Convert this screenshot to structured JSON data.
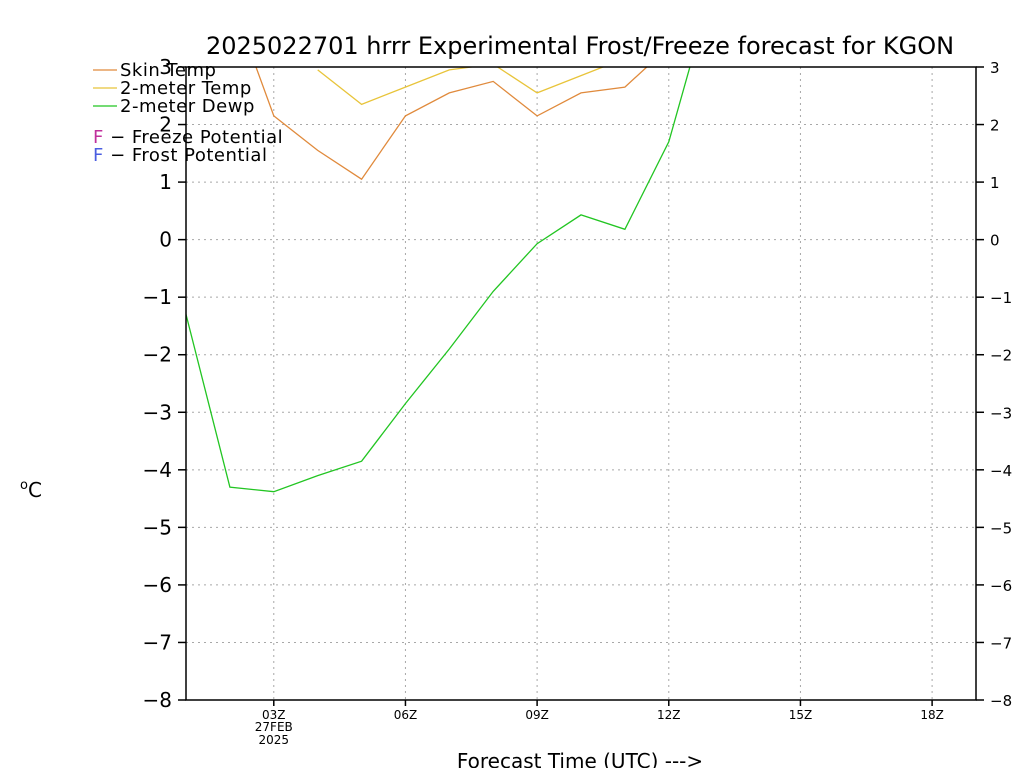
{
  "chart_data": {
    "type": "line",
    "title": "2025022701 hrrr Experimental Frost/Freeze forecast for KGON",
    "ylabel": "oC",
    "ylabel_sup": "o",
    "ylabel_unit": "C",
    "xlabel": "Forecast Time (UTC) --->",
    "ylim": [
      -8,
      3
    ],
    "xlim": [
      0,
      18
    ],
    "yticks": [
      -8,
      -7,
      -6,
      -5,
      -4,
      -3,
      -2,
      -1,
      0,
      1,
      2,
      3
    ],
    "ytick_labels": [
      "−8",
      "−7",
      "−6",
      "−5",
      "−4",
      "−3",
      "−2",
      "−1",
      "0",
      "1",
      "2",
      "3"
    ],
    "xticks": [
      {
        "x": 2,
        "label": "03Z",
        "sub1": "27FEB",
        "sub2": "2025"
      },
      {
        "x": 5,
        "label": "06Z",
        "sub1": "",
        "sub2": ""
      },
      {
        "x": 8,
        "label": "09Z",
        "sub1": "",
        "sub2": ""
      },
      {
        "x": 11,
        "label": "12Z",
        "sub1": "",
        "sub2": ""
      },
      {
        "x": 14,
        "label": "15Z",
        "sub1": "",
        "sub2": ""
      },
      {
        "x": 17,
        "label": "18Z",
        "sub1": "",
        "sub2": ""
      }
    ],
    "grid": true,
    "legend_position": "top-left",
    "series": [
      {
        "name": "Skin Temp",
        "color": "#e08a3c",
        "x": [
          1.5,
          2,
          3,
          4,
          5,
          6,
          7,
          8,
          9,
          10,
          10.5,
          11,
          12
        ],
        "y": [
          3.2,
          2.15,
          1.55,
          1.05,
          2.15,
          2.55,
          2.75,
          2.15,
          2.55,
          2.65,
          3.0,
          3.4,
          3.6
        ]
      },
      {
        "name": "2-meter Temp",
        "color": "#e8c43a",
        "x": [
          3,
          4,
          5,
          6,
          6.5,
          7,
          8,
          9,
          9.5,
          10,
          11,
          12
        ],
        "y": [
          2.95,
          2.35,
          2.65,
          2.95,
          3.0,
          3.05,
          2.55,
          2.85,
          3.0,
          3.1,
          3.2,
          3.4
        ]
      },
      {
        "name": "2-meter Dewp",
        "color": "#22c522",
        "x": [
          0,
          1,
          2,
          3,
          4,
          5,
          6,
          7,
          8,
          9,
          10,
          11,
          11.5
        ],
        "y": [
          -1.3,
          -4.3,
          -4.38,
          -4.1,
          -3.85,
          -2.85,
          -1.9,
          -0.9,
          -0.07,
          0.43,
          0.18,
          1.7,
          3.05
        ]
      }
    ],
    "annotations": [
      {
        "letter": "F",
        "text": " − Freeze Potential",
        "color": "#c0309c"
      },
      {
        "letter": "F",
        "text": " − Frost Potential",
        "color": "#4a5de0"
      }
    ]
  }
}
